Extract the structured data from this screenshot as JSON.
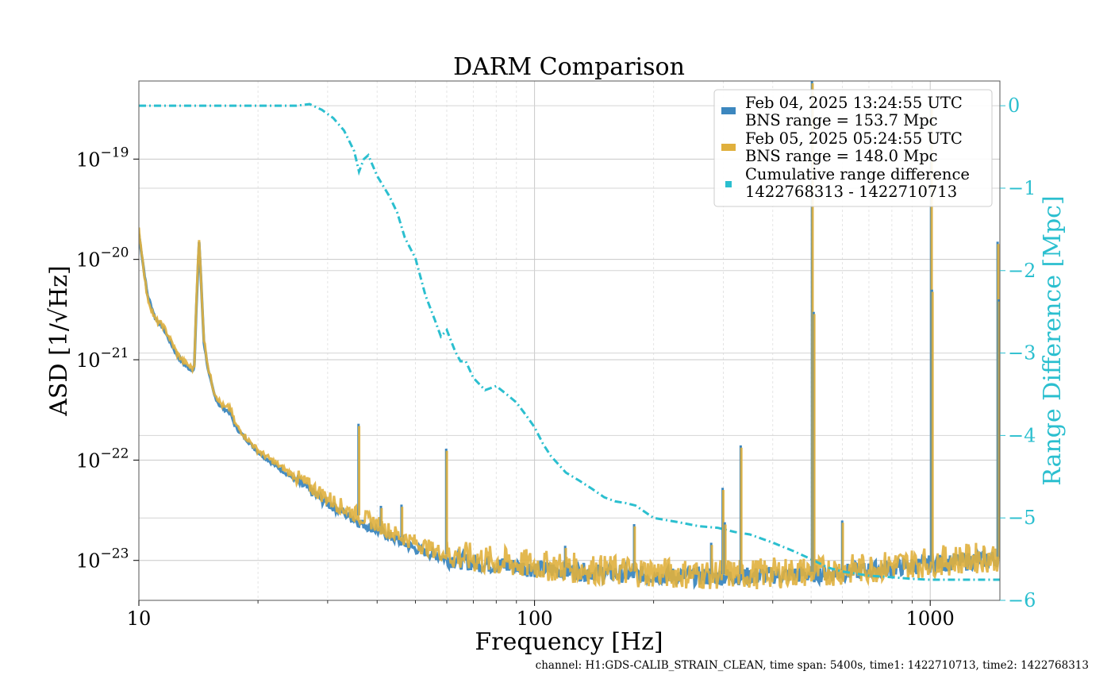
{
  "chart_data": {
    "type": "line",
    "title": "DARM Comparison",
    "xlabel": "Frequency [Hz]",
    "ylabel": "ASD [1/√Hz]",
    "ylabel_right": "Range Difference [Mpc]",
    "x_scale": "log",
    "y_scale": "log",
    "xlim": [
      10,
      1500
    ],
    "ylim": [
      4e-24,
      6e-19
    ],
    "ylim_right": [
      -6,
      0.3
    ],
    "grid": true,
    "legend_placement": "top-right",
    "x_ticks": [
      {
        "value": 10,
        "label": "10"
      },
      {
        "value": 100,
        "label": "100"
      },
      {
        "value": 1000,
        "label": "1000"
      }
    ],
    "y_ticks": [
      {
        "value": 1e-19,
        "base": "10",
        "exp": "−19"
      },
      {
        "value": 1e-20,
        "base": "10",
        "exp": "−20"
      },
      {
        "value": 1e-21,
        "base": "10",
        "exp": "−21"
      },
      {
        "value": 1e-22,
        "base": "10",
        "exp": "−22"
      },
      {
        "value": 1e-23,
        "base": "10",
        "exp": "−23"
      }
    ],
    "y_ticks_right": [
      {
        "value": 0,
        "label": "0"
      },
      {
        "value": -1,
        "label": "−1"
      },
      {
        "value": -2,
        "label": "−2"
      },
      {
        "value": -3,
        "label": "−3"
      },
      {
        "value": -4,
        "label": "−4"
      },
      {
        "value": -5,
        "label": "−5"
      },
      {
        "value": -6,
        "label": "−6"
      }
    ],
    "series": [
      {
        "legend": [
          "Feb 04, 2025 13:24:55 UTC",
          "BNS range = 153.7 Mpc"
        ],
        "color": "#3c87bf",
        "axis": "left",
        "x": [
          10,
          10.5,
          11,
          11.5,
          12,
          12.5,
          13,
          13.5,
          13.8,
          14,
          14.2,
          14.6,
          15,
          15.5,
          16,
          16.5,
          17,
          17.5,
          18,
          19,
          20,
          22,
          24,
          27,
          30,
          33,
          36,
          40,
          45,
          50,
          55,
          60,
          70,
          80,
          100,
          120,
          150,
          200,
          250,
          300,
          350,
          400,
          500,
          600,
          700,
          800,
          900,
          1000,
          1200,
          1500
        ],
        "y": [
          1.8e-20,
          4.5e-21,
          2.6e-21,
          2.1e-21,
          1.5e-21,
          1.1e-21,
          9e-22,
          8e-22,
          8e-22,
          4e-21,
          1.5e-20,
          1.5e-21,
          7.5e-22,
          4.5e-22,
          3.5e-22,
          3.2e-22,
          3e-22,
          2.2e-22,
          1.9e-22,
          1.5e-22,
          1.2e-22,
          9e-23,
          7e-23,
          5e-23,
          3.7e-23,
          3e-23,
          2.4e-23,
          2e-23,
          1.6e-23,
          1.3e-23,
          1.15e-23,
          1.05e-23,
          9.5e-24,
          9e-24,
          8.3e-24,
          7.9e-24,
          7.5e-24,
          7.1e-24,
          6.9e-24,
          6.9e-24,
          7e-24,
          7.1e-24,
          7.3e-24,
          7.6e-24,
          8e-24,
          8.4e-24,
          8.8e-24,
          9.2e-24,
          9.8e-24,
          1.05e-23
        ]
      },
      {
        "legend": [
          "Feb 05, 2025 05:24:55 UTC",
          "BNS range = 148.0 Mpc"
        ],
        "color": "#e0b03d",
        "axis": "left",
        "x": [
          10,
          10.5,
          11,
          11.5,
          12,
          12.5,
          13,
          13.5,
          13.8,
          14,
          14.2,
          14.6,
          15,
          15.5,
          16,
          16.5,
          17,
          17.5,
          18,
          19,
          20,
          22,
          24,
          27,
          30,
          33,
          36,
          40,
          45,
          50,
          55,
          60,
          70,
          80,
          100,
          120,
          150,
          200,
          250,
          300,
          350,
          400,
          500,
          600,
          700,
          800,
          900,
          1000,
          1200,
          1500
        ],
        "y": [
          2e-20,
          4.2e-21,
          2.5e-21,
          2.2e-21,
          1.6e-21,
          1.15e-21,
          9.5e-22,
          8.5e-22,
          8e-22,
          5e-21,
          1.55e-20,
          1.6e-21,
          8e-22,
          4.8e-22,
          3.8e-22,
          3.3e-22,
          3.4e-22,
          2.3e-22,
          2e-22,
          1.55e-22,
          1.25e-22,
          9.5e-23,
          7.5e-23,
          5.5e-23,
          4.2e-23,
          3.3e-23,
          2.8e-23,
          2.3e-23,
          1.8e-23,
          1.5e-23,
          1.3e-23,
          1.15e-23,
          1.05e-23,
          9.7e-24,
          9e-24,
          8.5e-24,
          8e-24,
          7.6e-24,
          7.3e-24,
          7.3e-24,
          7.3e-24,
          7.5e-24,
          7.7e-24,
          8e-24,
          8.4e-24,
          8.9e-24,
          9.3e-24,
          9.7e-24,
          1.03e-23,
          1.1e-23
        ]
      },
      {
        "legend": [
          "Cumulative range difference",
          "1422768313 - 1422710713"
        ],
        "color": "#2bbfcf",
        "axis": "right",
        "style": "dashdot",
        "x": [
          10,
          20,
          25,
          27,
          29,
          31,
          33,
          35,
          36,
          37,
          38,
          40,
          43,
          45,
          47,
          50,
          53,
          56,
          58,
          60,
          63,
          65,
          67,
          70,
          75,
          80,
          85,
          90,
          95,
          100,
          105,
          110,
          120,
          130,
          140,
          150,
          160,
          170,
          180,
          200,
          230,
          260,
          290,
          320,
          350,
          400,
          450,
          500,
          550,
          600,
          700,
          800,
          900,
          1000,
          1200,
          1500
        ],
        "y": [
          0,
          0,
          0,
          0.02,
          -0.05,
          -0.15,
          -0.3,
          -0.55,
          -0.8,
          -0.65,
          -0.6,
          -0.85,
          -1.1,
          -1.3,
          -1.6,
          -1.85,
          -2.3,
          -2.6,
          -2.8,
          -2.72,
          -2.98,
          -3.1,
          -3.1,
          -3.3,
          -3.45,
          -3.4,
          -3.5,
          -3.6,
          -3.75,
          -3.9,
          -4.1,
          -4.25,
          -4.45,
          -4.55,
          -4.65,
          -4.75,
          -4.8,
          -4.82,
          -4.85,
          -5.0,
          -5.05,
          -5.1,
          -5.12,
          -5.17,
          -5.2,
          -5.3,
          -5.4,
          -5.5,
          -5.6,
          -5.65,
          -5.7,
          -5.72,
          -5.74,
          -5.75,
          -5.75,
          -5.75
        ]
      }
    ],
    "spikes": [
      {
        "x": 35.9,
        "y_top": 2.3e-22
      },
      {
        "x": 40.9,
        "y_top": 3.5e-23
      },
      {
        "x": 46.1,
        "y_top": 3.6e-23
      },
      {
        "x": 59.8,
        "y_top": 1.3e-22
      },
      {
        "x": 119.5,
        "y_top": 1.4e-23
      },
      {
        "x": 178.5,
        "y_top": 2.3e-23
      },
      {
        "x": 279.5,
        "y_top": 1.5e-23
      },
      {
        "x": 298.8,
        "y_top": 5.3e-23
      },
      {
        "x": 302.5,
        "y_top": 2.4e-23
      },
      {
        "x": 331.9,
        "y_top": 1.4e-22
      },
      {
        "x": 502.5,
        "y_top": 6e-19
      },
      {
        "x": 507.5,
        "y_top": 3e-21
      },
      {
        "x": 599.1,
        "y_top": 2.5e-23
      },
      {
        "x": 1005,
        "y_top": 4e-19
      },
      {
        "x": 1010,
        "y_top": 5e-21
      },
      {
        "x": 1480,
        "y_top": 1.5e-20
      },
      {
        "x": 1490,
        "y_top": 4e-21
      }
    ]
  },
  "footer": "channel: H1:GDS-CALIB_STRAIN_CLEAN, time span: 5400s, time1: 1422710713, time2: 1422768313"
}
